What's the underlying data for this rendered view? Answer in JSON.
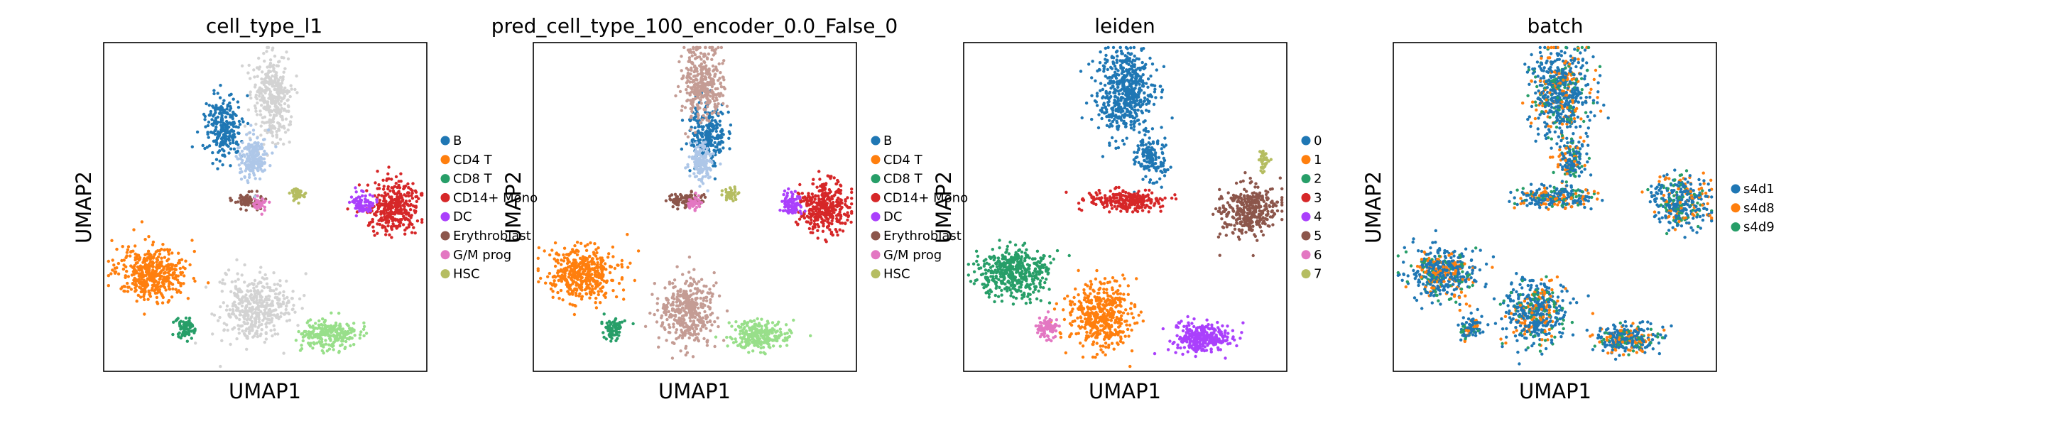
{
  "chart_data": [
    {
      "type": "scatter",
      "subtype": "umap-embedding",
      "title": "cell_type_l1",
      "xlabel": "UMAP1",
      "ylabel": "UMAP2",
      "ticks": "none",
      "legend_placement": "right",
      "categories": [
        "B",
        "CD4 T",
        "CD8 T",
        "CD14+ Mono",
        "DC",
        "Erythroblast",
        "G/M prog",
        "HSC"
      ],
      "colors": [
        "#1f77b4",
        "#ff7f0e",
        "#279e68",
        "#d62728",
        "#aa40fc",
        "#8c564b",
        "#e377c2",
        "#b5bd61"
      ],
      "extra_colors_unlisted": [
        "#d3d3d3",
        "#aec7e8",
        "#98df8a",
        "#c49c94"
      ],
      "clusters": [
        {
          "cat": 0,
          "cx": 0.37,
          "cy": 0.26,
          "rx": 0.05,
          "ry": 0.09,
          "n": 250
        },
        {
          "cat": 1,
          "cx": 0.15,
          "cy": 0.7,
          "rx": 0.1,
          "ry": 0.07,
          "n": 450
        },
        {
          "cat": 2,
          "cx": 0.25,
          "cy": 0.87,
          "rx": 0.025,
          "ry": 0.03,
          "n": 80
        },
        {
          "cat": 3,
          "cx": 0.9,
          "cy": 0.5,
          "rx": 0.07,
          "ry": 0.07,
          "n": 350
        },
        {
          "cat": 4,
          "cx": 0.8,
          "cy": 0.49,
          "rx": 0.03,
          "ry": 0.03,
          "n": 80
        },
        {
          "cat": 5,
          "cx": 0.45,
          "cy": 0.48,
          "rx": 0.04,
          "ry": 0.02,
          "n": 80
        },
        {
          "cat": 6,
          "cx": 0.48,
          "cy": 0.49,
          "rx": 0.02,
          "ry": 0.02,
          "n": 40
        },
        {
          "cat": 7,
          "cx": 0.6,
          "cy": 0.46,
          "rx": 0.02,
          "ry": 0.02,
          "n": 40
        },
        {
          "cat": 8,
          "cx": 0.52,
          "cy": 0.17,
          "rx": 0.05,
          "ry": 0.12,
          "n": 350
        },
        {
          "cat": 8,
          "cx": 0.47,
          "cy": 0.81,
          "rx": 0.1,
          "ry": 0.09,
          "n": 400
        },
        {
          "cat": 9,
          "cx": 0.46,
          "cy": 0.35,
          "rx": 0.04,
          "ry": 0.06,
          "n": 200
        },
        {
          "cat": 10,
          "cx": 0.7,
          "cy": 0.89,
          "rx": 0.08,
          "ry": 0.04,
          "n": 250
        }
      ]
    },
    {
      "type": "scatter",
      "subtype": "umap-embedding",
      "title": "pred_cell_type_100_encoder_0.0_False_0",
      "xlabel": "UMAP1",
      "ylabel": "UMAP2",
      "ticks": "none",
      "legend_placement": "right",
      "categories": [
        "B",
        "CD4 T",
        "CD8 T",
        "CD14+ Mono",
        "DC",
        "Erythroblast",
        "G/M prog",
        "HSC"
      ],
      "colors": [
        "#1f77b4",
        "#ff7f0e",
        "#279e68",
        "#d62728",
        "#aa40fc",
        "#8c564b",
        "#e377c2",
        "#b5bd61"
      ],
      "extra_colors_unlisted": [
        "#c49c94",
        "#aec7e8",
        "#98df8a"
      ],
      "clusters": [
        {
          "cat": 0,
          "cx": 0.54,
          "cy": 0.28,
          "rx": 0.05,
          "ry": 0.09,
          "n": 250
        },
        {
          "cat": 1,
          "cx": 0.15,
          "cy": 0.7,
          "rx": 0.1,
          "ry": 0.07,
          "n": 450
        },
        {
          "cat": 2,
          "cx": 0.25,
          "cy": 0.87,
          "rx": 0.025,
          "ry": 0.03,
          "n": 80
        },
        {
          "cat": 3,
          "cx": 0.9,
          "cy": 0.5,
          "rx": 0.07,
          "ry": 0.07,
          "n": 350
        },
        {
          "cat": 4,
          "cx": 0.8,
          "cy": 0.49,
          "rx": 0.03,
          "ry": 0.03,
          "n": 80
        },
        {
          "cat": 5,
          "cx": 0.47,
          "cy": 0.48,
          "rx": 0.05,
          "ry": 0.02,
          "n": 90
        },
        {
          "cat": 6,
          "cx": 0.5,
          "cy": 0.49,
          "rx": 0.02,
          "ry": 0.02,
          "n": 40
        },
        {
          "cat": 7,
          "cx": 0.61,
          "cy": 0.46,
          "rx": 0.02,
          "ry": 0.02,
          "n": 40
        },
        {
          "cat": 8,
          "cx": 0.52,
          "cy": 0.12,
          "rx": 0.06,
          "ry": 0.1,
          "n": 350
        },
        {
          "cat": 8,
          "cx": 0.48,
          "cy": 0.82,
          "rx": 0.08,
          "ry": 0.09,
          "n": 400
        },
        {
          "cat": 9,
          "cx": 0.52,
          "cy": 0.36,
          "rx": 0.03,
          "ry": 0.05,
          "n": 150
        },
        {
          "cat": 10,
          "cx": 0.7,
          "cy": 0.89,
          "rx": 0.08,
          "ry": 0.04,
          "n": 250
        }
      ]
    },
    {
      "type": "scatter",
      "subtype": "umap-embedding",
      "title": "leiden",
      "xlabel": "UMAP1",
      "ylabel": "UMAP2",
      "ticks": "none",
      "legend_placement": "right",
      "categories": [
        "0",
        "1",
        "2",
        "3",
        "4",
        "5",
        "6",
        "7"
      ],
      "colors": [
        "#1f77b4",
        "#ff7f0e",
        "#279e68",
        "#d62728",
        "#aa40fc",
        "#8c564b",
        "#e377c2",
        "#b5bd61"
      ],
      "clusters": [
        {
          "cat": 0,
          "cx": 0.5,
          "cy": 0.15,
          "rx": 0.08,
          "ry": 0.12,
          "n": 550
        },
        {
          "cat": 0,
          "cx": 0.58,
          "cy": 0.35,
          "rx": 0.04,
          "ry": 0.06,
          "n": 150
        },
        {
          "cat": 1,
          "cx": 0.42,
          "cy": 0.83,
          "rx": 0.09,
          "ry": 0.09,
          "n": 450
        },
        {
          "cat": 2,
          "cx": 0.16,
          "cy": 0.7,
          "rx": 0.1,
          "ry": 0.07,
          "n": 450
        },
        {
          "cat": 3,
          "cx": 0.5,
          "cy": 0.48,
          "rx": 0.1,
          "ry": 0.03,
          "n": 250
        },
        {
          "cat": 4,
          "cx": 0.74,
          "cy": 0.9,
          "rx": 0.08,
          "ry": 0.04,
          "n": 300
        },
        {
          "cat": 5,
          "cx": 0.88,
          "cy": 0.51,
          "rx": 0.08,
          "ry": 0.07,
          "n": 350
        },
        {
          "cat": 6,
          "cx": 0.26,
          "cy": 0.87,
          "rx": 0.03,
          "ry": 0.03,
          "n": 90
        },
        {
          "cat": 7,
          "cx": 0.93,
          "cy": 0.36,
          "rx": 0.015,
          "ry": 0.03,
          "n": 40
        }
      ]
    },
    {
      "type": "scatter",
      "subtype": "umap-embedding",
      "title": "batch",
      "xlabel": "UMAP1",
      "ylabel": "UMAP2",
      "ticks": "none",
      "legend_placement": "right",
      "categories": [
        "s4d1",
        "s4d8",
        "s4d9"
      ],
      "colors": [
        "#1f77b4",
        "#ff7f0e",
        "#279e68"
      ],
      "mixing": "all batches intermixed across all clusters",
      "clusters": [
        {
          "cat": -1,
          "cx": 0.52,
          "cy": 0.15,
          "rx": 0.08,
          "ry": 0.12,
          "n": 600
        },
        {
          "cat": -1,
          "cx": 0.55,
          "cy": 0.36,
          "rx": 0.04,
          "ry": 0.06,
          "n": 150
        },
        {
          "cat": -1,
          "cx": 0.5,
          "cy": 0.47,
          "rx": 0.1,
          "ry": 0.03,
          "n": 250
        },
        {
          "cat": -1,
          "cx": 0.89,
          "cy": 0.48,
          "rx": 0.08,
          "ry": 0.07,
          "n": 350
        },
        {
          "cat": -1,
          "cx": 0.15,
          "cy": 0.7,
          "rx": 0.1,
          "ry": 0.07,
          "n": 450
        },
        {
          "cat": -1,
          "cx": 0.44,
          "cy": 0.82,
          "rx": 0.09,
          "ry": 0.09,
          "n": 450
        },
        {
          "cat": -1,
          "cx": 0.24,
          "cy": 0.87,
          "rx": 0.03,
          "ry": 0.03,
          "n": 90
        },
        {
          "cat": -1,
          "cx": 0.72,
          "cy": 0.9,
          "rx": 0.08,
          "ry": 0.04,
          "n": 300
        }
      ]
    }
  ]
}
